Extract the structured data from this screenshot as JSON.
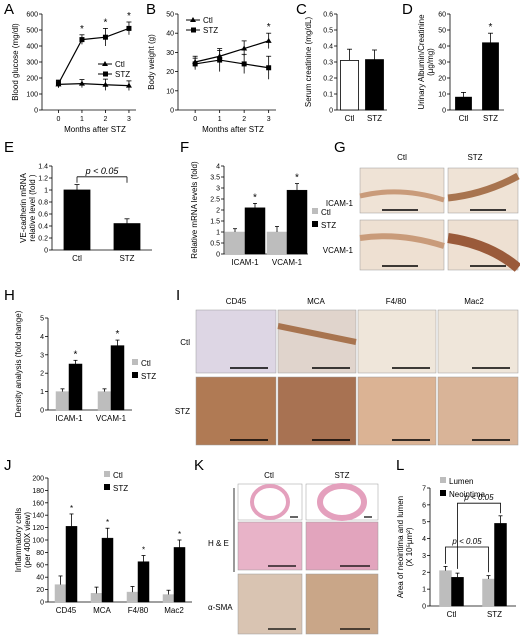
{
  "panels": {
    "A": "A",
    "B": "B",
    "C": "C",
    "D": "D",
    "E": "E",
    "F": "F",
    "G": "G",
    "H": "H",
    "I": "I",
    "J": "J",
    "K": "K",
    "L": "L"
  },
  "colors": {
    "ctl_bar": "#bdbdbd",
    "stz_bar": "#000000",
    "open_bar": "#ffffff",
    "tissue_light": "#efe3d6",
    "tissue_brown": "#9a6a45",
    "he_pink": "#e6a6c0"
  },
  "chart_data": [
    {
      "id": "A",
      "type": "line",
      "ylabel": "Blood glucose (mg/dl)",
      "xlabel": "Months after STZ",
      "x": [
        0,
        1,
        2,
        3
      ],
      "xlim": [
        -0.7,
        3.3
      ],
      "ylim": [
        0,
        600
      ],
      "yticks": [
        0,
        100,
        200,
        300,
        400,
        500,
        600
      ],
      "series": [
        {
          "name": "Ctl",
          "marker": "triangle",
          "values": [
            160,
            165,
            158,
            152
          ],
          "err": [
            22,
            25,
            35,
            30
          ]
        },
        {
          "name": "STZ",
          "marker": "square",
          "values": [
            165,
            440,
            455,
            510
          ],
          "err": [
            22,
            30,
            55,
            40
          ]
        }
      ],
      "annotations": [
        "*",
        "*",
        "*"
      ],
      "legend": "right"
    },
    {
      "id": "B",
      "type": "line",
      "ylabel": "Body weight (g)",
      "xlabel": "Months after STZ",
      "x": [
        0,
        1,
        2,
        3
      ],
      "xlim": [
        -0.7,
        3.3
      ],
      "ylim": [
        0,
        50
      ],
      "yticks": [
        0,
        10,
        20,
        30,
        40,
        50
      ],
      "series": [
        {
          "name": "Ctl",
          "marker": "triangle",
          "values": [
            25,
            28,
            32,
            36
          ],
          "err": [
            3,
            3,
            4,
            4
          ]
        },
        {
          "name": "STZ",
          "marker": "square",
          "values": [
            24,
            26,
            24,
            22
          ],
          "err": [
            3,
            6,
            5,
            6
          ]
        }
      ],
      "annotations": [
        "*"
      ],
      "legend": "top-left"
    },
    {
      "id": "C",
      "type": "bar",
      "ylabel": "Serum creatinine (mg/dL)",
      "categories": [
        "Ctl",
        "STZ"
      ],
      "ylim": [
        0,
        0.6
      ],
      "yticks": [
        "0",
        "0.1",
        "0.2",
        "0.3",
        "0.4",
        "0.5",
        "0.6"
      ],
      "values": [
        0.31,
        0.315
      ],
      "err": [
        0.07,
        0.06
      ]
    },
    {
      "id": "D",
      "type": "bar",
      "ylabel": "Urinary Albumin/Creatinine (µg/mg)",
      "categories": [
        "Ctl",
        "STZ"
      ],
      "ylim": [
        0,
        60
      ],
      "yticks": [
        "0",
        "10",
        "20",
        "30",
        "40",
        "50",
        "60"
      ],
      "values": [
        8,
        42
      ],
      "err": [
        3,
        6
      ],
      "annotations": [
        "*"
      ]
    },
    {
      "id": "E",
      "type": "bar",
      "ylabel": "VE-cadherin mRNA relative level (fold )",
      "categories": [
        "Ctl",
        "STZ"
      ],
      "ylim": [
        0,
        1.4
      ],
      "yticks": [
        "0",
        "0.2",
        "0.4",
        "0.6",
        "0.8",
        "1",
        "1.2",
        "1.4"
      ],
      "values": [
        1.0,
        0.44
      ],
      "err": [
        0.09,
        0.08
      ],
      "annotations": [
        "p < 0.05"
      ]
    },
    {
      "id": "F",
      "type": "bar",
      "ylabel": "Relative mRNA levels (fold)",
      "categories": [
        "ICAM-1",
        "VCAM-1"
      ],
      "ylim": [
        0,
        4
      ],
      "yticks": [
        "0",
        "0.5",
        "1",
        "1.5",
        "2",
        "2.5",
        "3",
        "3.5",
        "4"
      ],
      "series": [
        {
          "name": "Ctl",
          "values": [
            1.0,
            1.0
          ],
          "err": [
            0.15,
            0.25
          ]
        },
        {
          "name": "STZ",
          "values": [
            2.1,
            2.9
          ],
          "err": [
            0.2,
            0.3
          ]
        }
      ],
      "annotations": [
        "*",
        "*"
      ],
      "legend": "right"
    },
    {
      "id": "H",
      "type": "bar",
      "ylabel": "Density analysis (fold change)",
      "categories": [
        "ICAM-1",
        "VCAM-1"
      ],
      "ylim": [
        0,
        5
      ],
      "yticks": [
        "0",
        "1",
        "2",
        "3",
        "4",
        "5"
      ],
      "series": [
        {
          "name": "Ctl",
          "values": [
            1.0,
            1.0
          ],
          "err": [
            0.15,
            0.15
          ]
        },
        {
          "name": "STZ",
          "values": [
            2.5,
            3.5
          ],
          "err": [
            0.2,
            0.3
          ]
        }
      ],
      "annotations": [
        "*",
        "*"
      ],
      "legend": "right"
    },
    {
      "id": "J",
      "type": "bar",
      "ylabel": "Inflammatory cells (per 400X view)",
      "categories": [
        "CD45",
        "MCA",
        "F4/80",
        "Mac2"
      ],
      "ylim": [
        0,
        200
      ],
      "yticks": [
        "0",
        "20",
        "40",
        "60",
        "80",
        "100",
        "120",
        "140",
        "160",
        "180",
        "200"
      ],
      "series": [
        {
          "name": "Ctl",
          "values": [
            28,
            14,
            16,
            12
          ],
          "err": [
            14,
            10,
            9,
            7
          ]
        },
        {
          "name": "STZ",
          "values": [
            122,
            103,
            65,
            88
          ],
          "err": [
            20,
            16,
            10,
            12
          ]
        }
      ],
      "annotations": [
        "*",
        "*",
        "*",
        "*"
      ],
      "legend": "top-left"
    },
    {
      "id": "L",
      "type": "bar",
      "ylabel": "Area of neointima and lumen (X 10⁵µm²)",
      "categories": [
        "Ctl",
        "STZ"
      ],
      "ylim": [
        0,
        7
      ],
      "yticks": [
        "0",
        "1",
        "2",
        "3",
        "4",
        "5",
        "6",
        "7"
      ],
      "series": [
        {
          "name": "Lumen",
          "values": [
            2.1,
            1.6
          ],
          "err": [
            0.25,
            0.2
          ]
        },
        {
          "name": "Neointima",
          "values": [
            1.7,
            4.9
          ],
          "err": [
            0.25,
            0.45
          ]
        }
      ],
      "annotations": [
        "p < 0.05",
        "p < 0.05"
      ],
      "legend": "top-right"
    }
  ],
  "micrographs": {
    "G": {
      "cols": [
        "Ctl",
        "STZ"
      ],
      "rows": [
        "ICAM-1",
        "VCAM-1"
      ]
    },
    "I": {
      "cols": [
        "CD45",
        "MCA",
        "F4/80",
        "Mac2"
      ],
      "rows": [
        "Ctl",
        "STZ"
      ]
    },
    "K": {
      "cols": [
        "Ctl",
        "STZ"
      ],
      "rows": [
        "H & E",
        "α-SMA"
      ]
    }
  }
}
